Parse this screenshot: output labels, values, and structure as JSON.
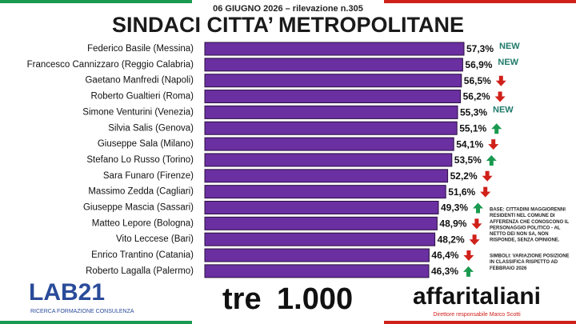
{
  "chart_data": {
    "type": "bar",
    "orientation": "horizontal",
    "subtitle": "06 GIUGNO 2026 – rilevazione n.305",
    "title": "SINDACI CITTA’ METROPOLITANE",
    "categories": [
      "Federico Basile (Messina)",
      "Francesco Cannizzaro (Reggio Calabria)",
      "Gaetano Manfredi (Napoli)",
      "Roberto Gualtieri (Roma)",
      "Simone Venturini  (Venezia)",
      "Silvia Salis (Genova)",
      "Giuseppe Sala (Milano)",
      "Stefano Lo Russo (Torino)",
      "Sara Funaro (Firenze)",
      "Massimo Zedda (Cagliari)",
      "Giuseppe Mascia (Sassari)",
      "Matteo Lepore (Bologna)",
      "Vito Leccese (Bari)",
      "Enrico Trantino (Catania)",
      "Roberto Lagalla (Palermo)"
    ],
    "values": [
      57.3,
      56.9,
      56.5,
      56.2,
      55.3,
      55.1,
      54.1,
      53.5,
      52.2,
      51.6,
      49.3,
      48.9,
      48.2,
      46.4,
      46.3
    ],
    "value_labels": [
      "57,3%",
      "56,9%",
      "56,5%",
      "56,2%",
      "55,3%",
      "55,1%",
      "54,1%",
      "53,5%",
      "52,2%",
      "51,6%",
      "49,3%",
      "48,9%",
      "48,2%",
      "46,4%",
      "46,3%"
    ],
    "status": [
      "NEW",
      "NEW",
      "down",
      "down",
      "NEW",
      "up",
      "down",
      "up",
      "down",
      "down",
      "up",
      "down",
      "down",
      "down",
      "up"
    ],
    "color": "#6a2fa0",
    "xlim": [
      -23.7,
      66.3
    ],
    "notes": {
      "base": [
        "BASE: CITTADINI MAGGIORENNI",
        "RESIDENTI  NEL COMUNE DI",
        "AFFERENZA CHE CONOSCONO IL",
        "PERSONAGGIO POLITICO  - AL",
        "NETTO DEI NON SA, NON",
        "RISPONDE, SENZA OPINIONE."
      ],
      "symbols": [
        "SIMBOLI: VARIAZIONE POSIZIONE",
        "IN CLASSIFICA RISPETTO AD",
        "FEBBRAIO 2026"
      ]
    }
  },
  "footer": {
    "lab21": "LAB21",
    "lab21_tagline": "RICERCA FORMAZIONE CONSULENZA",
    "tre": "tre",
    "thousand": "1.000",
    "affaritaliani": "affaritaliani",
    "director": "Direttore responsabile Marco Scotti"
  }
}
